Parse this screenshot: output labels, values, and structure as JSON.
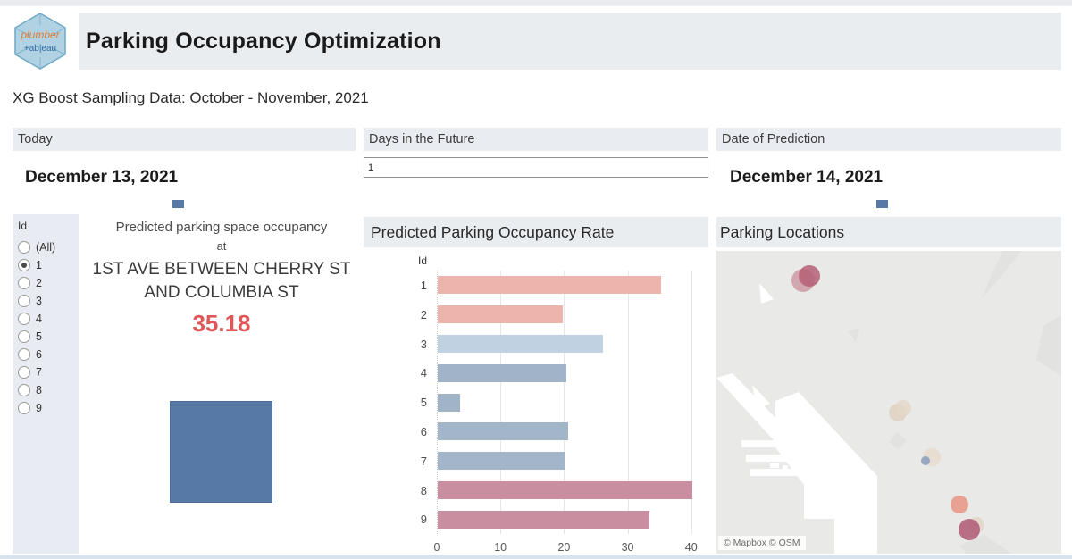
{
  "header": {
    "title": "Parking Occupancy Optimization",
    "logo_line1": "plumber",
    "logo_line2": "+ab|eau"
  },
  "subtitle": "XG Boost Sampling Data: October - November, 2021",
  "filters": {
    "today": {
      "label": "Today",
      "value": "December 13, 2021"
    },
    "days_future": {
      "label": "Days in the Future",
      "value": "1"
    },
    "prediction": {
      "label": "Date of Prediction",
      "value": "December 14, 2021"
    }
  },
  "id_filter": {
    "label": "Id",
    "options": [
      "(All)",
      "1",
      "2",
      "3",
      "4",
      "5",
      "6",
      "7",
      "8",
      "9"
    ],
    "selected": "1"
  },
  "ban": {
    "line1": "Predicted parking space occupancy",
    "line2": "at",
    "line3": "1ST AVE BETWEEN CHERRY ST AND COLUMBIA ST",
    "value": "35.18",
    "value_color": "#e15759",
    "square_color": "#567aa5"
  },
  "chart_data": {
    "type": "bar",
    "orientation": "horizontal",
    "title": "Predicted Parking Occupancy Rate",
    "ylabel": "Id",
    "categories": [
      "1",
      "2",
      "3",
      "4",
      "5",
      "6",
      "7",
      "8",
      "9"
    ],
    "values": [
      35.18,
      19.6,
      26,
      20.2,
      3.5,
      20.5,
      20,
      40.1,
      33.3
    ],
    "bar_colors": [
      "#edb3ad",
      "#edb3ad",
      "#c0d2e2",
      "#a0b3c7",
      "#a0b3c7",
      "#a2b5c9",
      "#a2b5c9",
      "#c98fa1",
      "#c98fa1"
    ],
    "xlim": [
      0,
      42
    ],
    "xticks": [
      0,
      10,
      20,
      30,
      40
    ],
    "grid": true,
    "legend": false
  },
  "map": {
    "title": "Parking Locations",
    "attribution": "© Mapbox  © OSM",
    "markers": [
      {
        "x": 97,
        "y": 33,
        "r": 13,
        "color": "#c2798b",
        "opacity": 0.6
      },
      {
        "x": 104,
        "y": 28,
        "r": 12,
        "color": "#b55f74",
        "opacity": 0.85
      },
      {
        "x": 203,
        "y": 181,
        "r": 10,
        "color": "#ded0c0",
        "opacity": 0.8
      },
      {
        "x": 209,
        "y": 176,
        "r": 9,
        "color": "#e3d7c8",
        "opacity": 0.8
      },
      {
        "x": 241,
        "y": 231,
        "r": 10,
        "color": "#e6dbcd",
        "opacity": 0.85
      },
      {
        "x": 234,
        "y": 235,
        "r": 5,
        "color": "#8da2bd",
        "opacity": 0.9
      },
      {
        "x": 272,
        "y": 284,
        "r": 10,
        "color": "#e89a8a",
        "opacity": 0.9
      },
      {
        "x": 291,
        "y": 307,
        "r": 9,
        "color": "#e0d4c6",
        "opacity": 0.8
      },
      {
        "x": 283,
        "y": 312,
        "r": 12,
        "color": "#b26179",
        "opacity": 0.9
      }
    ]
  }
}
